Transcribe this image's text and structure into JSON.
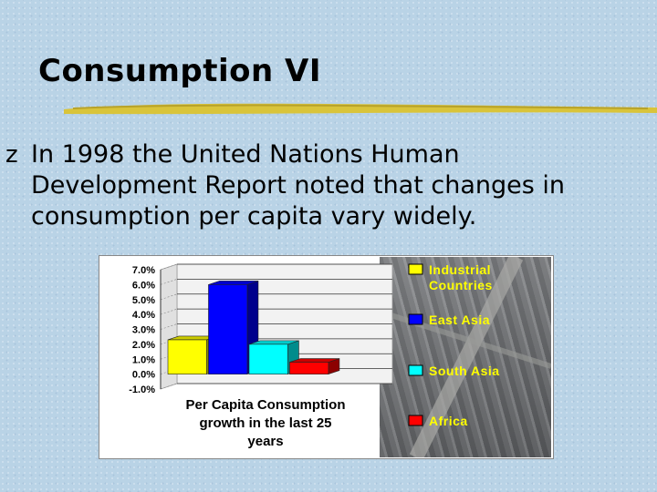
{
  "slide": {
    "title": "Consumption VI",
    "bullet_marker": "z",
    "bullet_text": "In 1998 the United Nations Human Development Report noted that changes in consumption per capita vary widely."
  },
  "colors": {
    "title_underline": "#d9c43a",
    "industrial": "#ffff00",
    "east_asia": "#0000ff",
    "south_asia": "#00ffff",
    "africa": "#ff0000",
    "legend_text": "#ffff00"
  },
  "chart_data": {
    "type": "bar",
    "style": "3d",
    "categories": [
      "Industrial Countries",
      "East Asia",
      "South Asia",
      "Africa"
    ],
    "values": [
      2.3,
      6.0,
      2.0,
      0.8
    ],
    "xlabel": "Per Capita Consumption growth in the last 25 years",
    "ylim": [
      -1.0,
      7.0
    ],
    "yticks": [
      "7.0%",
      "6.0%",
      "5.0%",
      "4.0%",
      "3.0%",
      "2.0%",
      "1.0%",
      "0.0%",
      "-1.0%"
    ],
    "legend": [
      {
        "label": "Industrial Countries",
        "color": "#ffff00"
      },
      {
        "label": "East Asia",
        "color": "#0000ff"
      },
      {
        "label": "South Asia",
        "color": "#00ffff"
      },
      {
        "label": "Africa",
        "color": "#ff0000"
      }
    ],
    "legend_position": "right",
    "grid": true
  }
}
